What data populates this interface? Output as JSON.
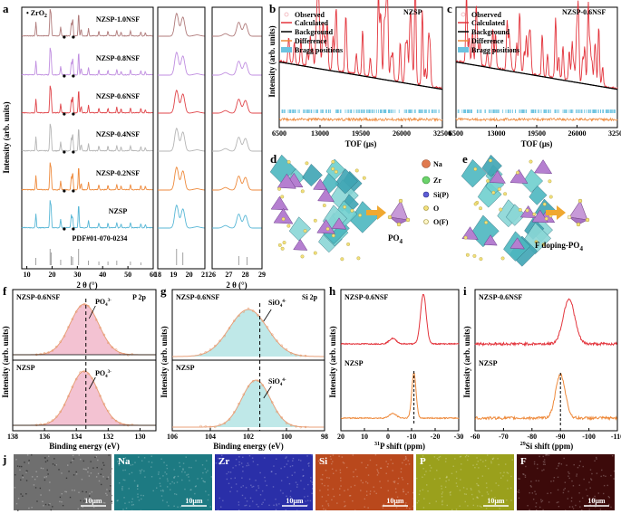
{
  "colors": {
    "nsf10": "#b07b7b",
    "nsf08": "#c08ee0",
    "nsf06": "#e0454a",
    "nsf04": "#b5b5b5",
    "nsf02": "#ee8a3c",
    "nzsp": "#58b7d6",
    "pdf": "#8a8a8a",
    "observed": "#f4c0c6",
    "calculated": "#e3343c",
    "background": "#000000",
    "difference": "#ee8a3c",
    "bragg": "#6cc3e0",
    "pfill": "#f3c2d2",
    "sifill": "#bfe8e8"
  },
  "panel_a": {
    "letter": "a",
    "zro2_label": "• ZrO",
    "zro2_sub": "2",
    "ylabel": "Intensity (arb. units)",
    "xlabel": "2 θ (°)",
    "xlabel2": "2 θ (°)",
    "xticks_main": [
      "10",
      "20",
      "30",
      "40",
      "50",
      "60"
    ],
    "xticks_mid": [
      "18",
      "19",
      "20",
      "21"
    ],
    "xticks_right": [
      "26",
      "27",
      "28",
      "29"
    ],
    "samples": [
      "NZSP-1.0NSF",
      "NZSP-0.8NSF",
      "NZSP-0.6NSF",
      "NZSP-0.4NSF",
      "NZSP-0.2NSF",
      "NZSP",
      "PDF#01-070-0234"
    ]
  },
  "panel_b": {
    "letter": "b",
    "tag": "NZSP",
    "ylabel": "Intensity (arb. units)",
    "xlabel": "TOF (μs)",
    "xticks": [
      "6500",
      "13000",
      "19500",
      "26000",
      "32500"
    ],
    "legend": [
      "Observed",
      "Calculated",
      "Background",
      "Difference",
      "Bragg positions"
    ]
  },
  "panel_c": {
    "letter": "c",
    "tag": "NZSP-0.6NSF",
    "xlabel": "TOF (μs)",
    "xticks": [
      "6500",
      "13000",
      "19500",
      "26000",
      "32500"
    ],
    "legend": [
      "Observed",
      "Calculated",
      "Background",
      "Difference",
      "Bragg positions"
    ]
  },
  "panel_d": {
    "letter": "d",
    "unit_label": "PO",
    "unit_sub": "4",
    "legend": [
      "Na",
      "Zr",
      "Si(P)",
      "O",
      "O(F)"
    ]
  },
  "panel_e": {
    "letter": "e",
    "unit_label": "F doping-PO",
    "unit_sub": "4"
  },
  "panel_f": {
    "letter": "f",
    "tag": "P 2p",
    "top_label": "NZSP-0.6NSF",
    "bottom_label": "NZSP",
    "peak": "PO",
    "peak_sub": "4",
    "peak_sup": "3-",
    "ylabel": "Intensity (arb. units)",
    "xlabel": "Binding energy (eV)",
    "xticks": [
      "138",
      "136",
      "134",
      "132",
      "130"
    ]
  },
  "panel_g": {
    "letter": "g",
    "tag": "Si 2p",
    "top_label": "NZSP-0.6NSF",
    "bottom_label": "NZSP",
    "peak": "SiO",
    "peak_sub": "4",
    "peak_sup": "4-",
    "ylabel": "Intensity (arb. units)",
    "xlabel": "Binding energy (eV)",
    "xticks": [
      "106",
      "104",
      "102",
      "100",
      "98"
    ]
  },
  "panel_h": {
    "letter": "h",
    "top_label": "NZSP-0.6NSF",
    "bottom_label": "NZSP",
    "ylabel": "Intensity (arb. units)",
    "xlabel_sup": "31",
    "xlabel": "P shift (ppm)",
    "xticks": [
      "20",
      "10",
      "0",
      "-10",
      "-20",
      "-30"
    ]
  },
  "panel_i": {
    "letter": "i",
    "top_label": "NZSP-0.6NSF",
    "bottom_label": "NZSP",
    "ylabel": "Intensity (arb. units)",
    "xlabel_sup": "29",
    "xlabel": "Si shift (ppm)",
    "xticks": [
      "-60",
      "-70",
      "-80",
      "-90",
      "-100",
      "-110"
    ]
  },
  "panel_j": {
    "letter": "j",
    "scale": "10μm",
    "tiles": [
      {
        "label": "",
        "bg": "#6f6f6f",
        "color": "#ffffff"
      },
      {
        "label": "Na",
        "bg": "#1d7a82",
        "color": "#ffffff"
      },
      {
        "label": "Zr",
        "bg": "#2a2fa8",
        "color": "#ffffff"
      },
      {
        "label": "Si",
        "bg": "#b9481c",
        "color": "#ffffff"
      },
      {
        "label": "P",
        "bg": "#9aa01c",
        "color": "#ffffff"
      },
      {
        "label": "F",
        "bg": "#3c0a0a",
        "color": "#ffffff"
      }
    ]
  }
}
